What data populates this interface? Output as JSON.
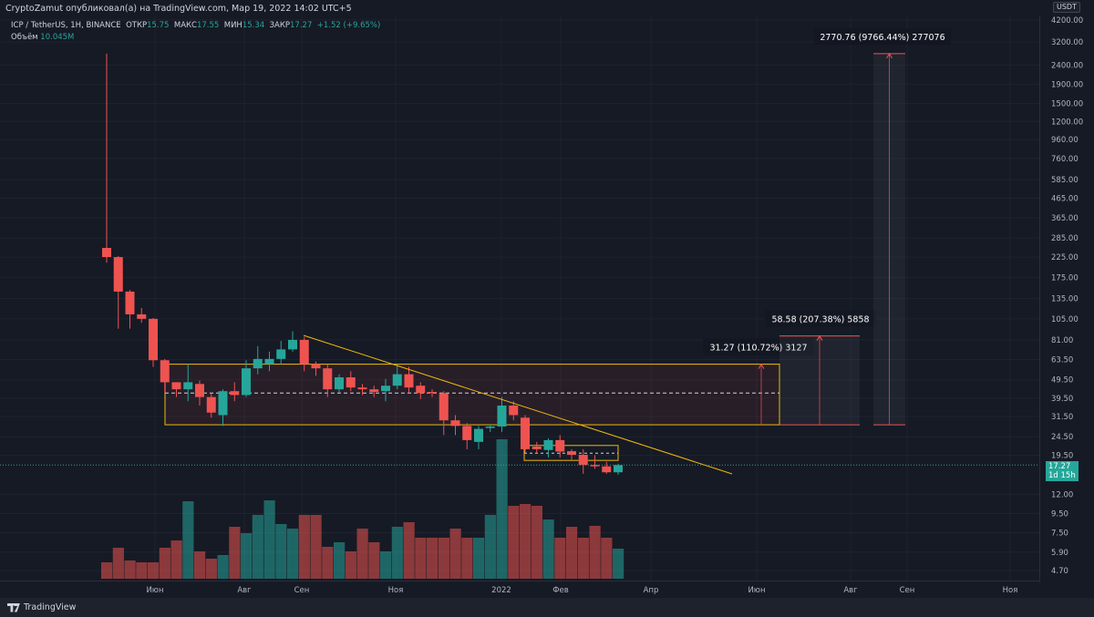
{
  "header": {
    "publish_line": "CryptoZamut опубликовал(а) на TradingView.com, Мар 19, 2022 14:02 UTC+5"
  },
  "legend": {
    "symbol": "ICP / TetherUS, 1H, BINANCE",
    "open_label": "ОТКР",
    "open": "15.75",
    "high_label": "МАКС",
    "high": "17.55",
    "low_label": "МИН",
    "low": "15.34",
    "close_label": "ЗАКР",
    "close": "17.27",
    "change": "+1.52 (+9.65%)",
    "volume_label": "Объём",
    "volume": "10.045M"
  },
  "price_axis": {
    "currency": "USDT",
    "ticks": [
      "4200.00",
      "3200.00",
      "2400.00",
      "1900.00",
      "1500.00",
      "1200.00",
      "960.00",
      "760.00",
      "585.00",
      "465.00",
      "365.00",
      "285.00",
      "225.00",
      "175.00",
      "135.00",
      "105.00",
      "81.00",
      "63.50",
      "49.50",
      "39.50",
      "31.50",
      "24.50",
      "19.50",
      "12.00",
      "9.50",
      "7.50",
      "5.90",
      "4.70"
    ],
    "last_price": "17.27",
    "countdown": "1d 15h"
  },
  "time_axis": {
    "labels": [
      "Июн",
      "Авг",
      "Сен",
      "Ноя",
      "2022",
      "Фев",
      "Апр",
      "Июн",
      "Авг",
      "Сен",
      "Ноя"
    ]
  },
  "colors": {
    "up": "#26a69a",
    "down": "#ef5350",
    "bg": "#161a25",
    "drawing": "#f0b90b"
  },
  "measurements": [
    {
      "label": "31.27 (110.72%) 3127"
    },
    {
      "label": "58.58 (207.38%) 5858"
    },
    {
      "label": "2770.76 (9766.44%) 277076"
    }
  ],
  "chart_data": {
    "type": "candlestick",
    "scale": "log",
    "candles": [
      [
        252,
        2770,
        210,
        225
      ],
      [
        225,
        228,
        93,
        147
      ],
      [
        147,
        150,
        93,
        111
      ],
      [
        111,
        120,
        100,
        105
      ],
      [
        105,
        106,
        58,
        63
      ],
      [
        63,
        64,
        42,
        48
      ],
      [
        48,
        48,
        40,
        44
      ],
      [
        44,
        60,
        38,
        48
      ],
      [
        47,
        49,
        36,
        40
      ],
      [
        40,
        42,
        31,
        33
      ],
      [
        32,
        44,
        28,
        43
      ],
      [
        43,
        48,
        38,
        41
      ],
      [
        41,
        63,
        40,
        57
      ],
      [
        57,
        75,
        53,
        64
      ],
      [
        60,
        70,
        55,
        64
      ],
      [
        64,
        80,
        60,
        72
      ],
      [
        72,
        90,
        70,
        81
      ],
      [
        81,
        84,
        55,
        60
      ],
      [
        60,
        62,
        52,
        57
      ],
      [
        57,
        60,
        40,
        44
      ],
      [
        44,
        53,
        42,
        51
      ],
      [
        51,
        55,
        43,
        45
      ],
      [
        45,
        47,
        41,
        44
      ],
      [
        44,
        46,
        40,
        42.6
      ],
      [
        43,
        50,
        38,
        46
      ],
      [
        46,
        60,
        44,
        53
      ],
      [
        53,
        58,
        42,
        45
      ],
      [
        46,
        48,
        39,
        42
      ],
      [
        42.6,
        44,
        40,
        42
      ],
      [
        42,
        43,
        25,
        30
      ],
      [
        30,
        32,
        25,
        28
      ],
      [
        28,
        29,
        21,
        23.5
      ],
      [
        23,
        28,
        21,
        27
      ],
      [
        27.3,
        28.5,
        26,
        27.8
      ],
      [
        27.8,
        40,
        26,
        36
      ],
      [
        36,
        38,
        30,
        32
      ],
      [
        31,
        32,
        20,
        21
      ],
      [
        21.7,
        23,
        20,
        21
      ],
      [
        20.8,
        24,
        19,
        23.5
      ],
      [
        23.5,
        25,
        19,
        20.4
      ],
      [
        20.5,
        21,
        18.5,
        19.6
      ],
      [
        19.6,
        21,
        15.5,
        17.3
      ],
      [
        17.3,
        19.5,
        16.5,
        17
      ],
      [
        17,
        18,
        15.5,
        15.8
      ],
      [
        15.8,
        17.55,
        15.34,
        17.27
      ]
    ],
    "volume_relative": [
      18,
      34,
      20,
      18,
      18,
      34,
      42,
      85,
      30,
      22,
      26,
      57,
      50,
      70,
      86,
      60,
      55,
      70,
      70,
      35,
      40,
      30,
      55,
      40,
      30,
      57,
      62,
      45,
      45,
      45,
      55,
      45,
      45,
      70,
      153,
      80,
      82,
      80,
      65,
      45,
      57,
      45,
      58,
      45,
      33
    ]
  }
}
